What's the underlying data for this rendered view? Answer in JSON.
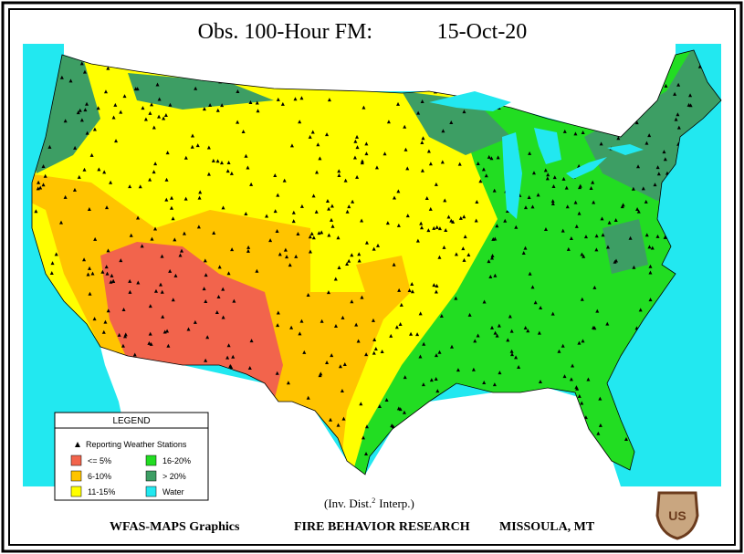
{
  "header": {
    "title": "Obs. 100-Hour FM:",
    "date": "15-Oct-20"
  },
  "legend": {
    "title": "LEGEND",
    "stations": "Reporting Weather Stations",
    "items": [
      {
        "label": "<= 5%",
        "color": "#f2644c"
      },
      {
        "label": "6-10%",
        "color": "#ffc400"
      },
      {
        "label": "11-15%",
        "color": "#ffff00"
      },
      {
        "label": "16-20%",
        "color": "#22dd22"
      },
      {
        "label": "> 20%",
        "color": "#3d9e64"
      },
      {
        "label": "Water",
        "color": "#22e8f0"
      }
    ]
  },
  "note": {
    "text": "(Inv. Dist.",
    "superscript": "2",
    "suffix": "Interp.)"
  },
  "footer": {
    "left": "WFAS-MAPS Graphics",
    "center": "FIRE BEHAVIOR RESEARCH",
    "right": "MISSOULA, MT"
  },
  "badge": "US"
}
